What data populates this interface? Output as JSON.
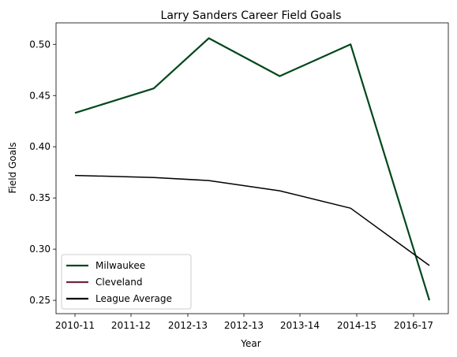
{
  "chart_data": {
    "type": "line",
    "title": "Larry Sanders  Career Field Goals",
    "xlabel": "Year",
    "ylabel": "Field Goals",
    "x_ticks": [
      "2010-11",
      "2011-12",
      "2012-13",
      "2012-13",
      "2013-14",
      "2014-15",
      "2016-17"
    ],
    "y_ticks": [
      "0.25",
      "0.30",
      "0.35",
      "0.40",
      "0.45",
      "0.50"
    ],
    "ylim": [
      0.237,
      0.521
    ],
    "grid": false,
    "legend_position": "lower-left",
    "series": [
      {
        "name": "Milwaukee",
        "color": "#00471b",
        "points": [
          [
            2011.5,
            0.433
          ],
          [
            2012.5,
            0.457
          ],
          [
            2013.2,
            0.506
          ],
          [
            2014.1,
            0.469
          ],
          [
            2015.0,
            0.5
          ],
          [
            2016.0,
            0.25
          ]
        ]
      },
      {
        "name": "Cleveland",
        "color": "#6f263d",
        "points": []
      },
      {
        "name": "League Average",
        "color": "#000000",
        "points": [
          [
            2011.5,
            0.372
          ],
          [
            2012.5,
            0.37
          ],
          [
            2013.2,
            0.367
          ],
          [
            2014.1,
            0.357
          ],
          [
            2015.0,
            0.34
          ],
          [
            2016.0,
            0.284
          ]
        ]
      }
    ]
  }
}
